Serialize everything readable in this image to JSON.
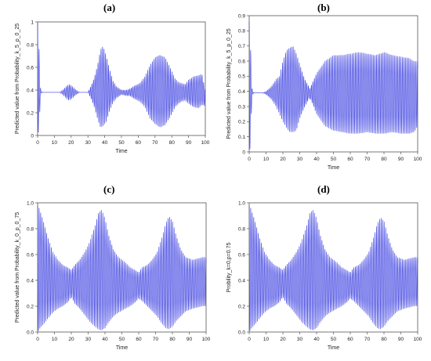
{
  "panels": {
    "a": {
      "label": "(a)"
    },
    "b": {
      "label": "(b)"
    },
    "c": {
      "label": "(c)"
    },
    "d": {
      "label": "(d)"
    }
  },
  "chart_data": [
    {
      "id": "a",
      "type": "line",
      "title": "",
      "xlabel": "Time",
      "ylabel": "Predicted value from Probability_k_5_p_0_25",
      "xlim": [
        0,
        100
      ],
      "ylim": [
        0,
        1
      ],
      "xticks": [
        0,
        10,
        20,
        30,
        40,
        50,
        60,
        70,
        80,
        90,
        100
      ],
      "yticks": [
        0,
        0.2,
        0.4,
        0.6,
        0.8,
        1
      ],
      "ytick_labels": [
        "0",
        "0.2",
        "0.4",
        "0.6",
        "0.8",
        "1"
      ],
      "grid": false,
      "color": "#3a3ee0",
      "mean": 0.38,
      "envelope": {
        "t": [
          0,
          0.5,
          1,
          1.5,
          2,
          3,
          5,
          10,
          13,
          15,
          17,
          18.5,
          20,
          21.5,
          23,
          25,
          27,
          30,
          32,
          34,
          36,
          37.5,
          39,
          41,
          43,
          45,
          47,
          50,
          53,
          55,
          58,
          61,
          64,
          67,
          70,
          73,
          76,
          79,
          82,
          84,
          86,
          88,
          90,
          93,
          96,
          98,
          100
        ],
        "upper": [
          0.99,
          0.97,
          0.7,
          0.45,
          0.39,
          0.38,
          0.38,
          0.38,
          0.38,
          0.4,
          0.43,
          0.45,
          0.44,
          0.42,
          0.4,
          0.38,
          0.38,
          0.38,
          0.44,
          0.52,
          0.64,
          0.76,
          0.79,
          0.7,
          0.58,
          0.48,
          0.43,
          0.4,
          0.4,
          0.41,
          0.44,
          0.46,
          0.52,
          0.62,
          0.69,
          0.71,
          0.69,
          0.6,
          0.5,
          0.47,
          0.46,
          0.45,
          0.49,
          0.52,
          0.53,
          0.54,
          0.4
        ],
        "lower": [
          0.0,
          0.03,
          0.04,
          0.3,
          0.37,
          0.38,
          0.38,
          0.38,
          0.38,
          0.36,
          0.33,
          0.31,
          0.32,
          0.34,
          0.36,
          0.38,
          0.38,
          0.38,
          0.32,
          0.24,
          0.13,
          0.07,
          0.08,
          0.12,
          0.22,
          0.29,
          0.33,
          0.36,
          0.35,
          0.35,
          0.32,
          0.3,
          0.25,
          0.15,
          0.1,
          0.07,
          0.09,
          0.16,
          0.25,
          0.28,
          0.3,
          0.31,
          0.28,
          0.25,
          0.24,
          0.27,
          0.26
        ]
      }
    },
    {
      "id": "b",
      "type": "line",
      "title": "",
      "xlabel": "Time",
      "ylabel": "Predicted value from Probability_k_5_p_0_25",
      "xlim": [
        0,
        100
      ],
      "ylim": [
        0,
        0.9
      ],
      "xticks": [
        0,
        10,
        20,
        30,
        40,
        50,
        60,
        70,
        80,
        90,
        100
      ],
      "yticks": [
        0,
        0.1,
        0.2,
        0.3,
        0.4,
        0.5,
        0.6,
        0.7,
        0.8,
        0.9
      ],
      "ytick_labels": [
        "0",
        "0.1",
        "0.2",
        "0.3",
        "0.4",
        "0.5",
        "0.6",
        "0.7",
        "0.8",
        "0.9"
      ],
      "grid": false,
      "color": "#3a3ee0",
      "mean": 0.39,
      "envelope": {
        "t": [
          0,
          0.5,
          1,
          1.5,
          2,
          3,
          5,
          8,
          10,
          13,
          16,
          18,
          20,
          22,
          24,
          26,
          28,
          30,
          33,
          36,
          40,
          45,
          50,
          55,
          60,
          65,
          70,
          75,
          80,
          85,
          90,
          95,
          98,
          100
        ],
        "upper": [
          0.86,
          0.85,
          0.62,
          0.44,
          0.4,
          0.39,
          0.39,
          0.39,
          0.4,
          0.43,
          0.48,
          0.5,
          0.6,
          0.67,
          0.69,
          0.7,
          0.65,
          0.58,
          0.48,
          0.42,
          0.52,
          0.6,
          0.64,
          0.64,
          0.65,
          0.66,
          0.65,
          0.64,
          0.66,
          0.64,
          0.63,
          0.62,
          0.6,
          0.6
        ],
        "lower": [
          0.0,
          0.02,
          0.1,
          0.34,
          0.38,
          0.39,
          0.39,
          0.39,
          0.38,
          0.35,
          0.3,
          0.25,
          0.2,
          0.16,
          0.13,
          0.13,
          0.14,
          0.22,
          0.3,
          0.36,
          0.25,
          0.17,
          0.14,
          0.13,
          0.12,
          0.12,
          0.13,
          0.12,
          0.12,
          0.13,
          0.12,
          0.12,
          0.13,
          0.17
        ]
      }
    },
    {
      "id": "c",
      "type": "line",
      "title": "",
      "xlabel": "Time",
      "ylabel": "Predicted value from Probability_k_0_p_0_75",
      "xlim": [
        0,
        100
      ],
      "ylim": [
        0,
        1
      ],
      "xticks": [
        0,
        10,
        20,
        30,
        40,
        50,
        60,
        70,
        80,
        90,
        100
      ],
      "yticks": [
        0,
        0.2,
        0.4,
        0.6,
        0.8,
        1
      ],
      "ytick_labels": [
        "0.0",
        "0.2",
        "0.4",
        "0.6",
        "0.8",
        "1.0"
      ],
      "grid": false,
      "color": "#3a3ee0",
      "mean": 0.37,
      "envelope": {
        "t": [
          0,
          1,
          3,
          6,
          9,
          12,
          15,
          18,
          20,
          22,
          25,
          28,
          31,
          34,
          36,
          38,
          40,
          42,
          45,
          48,
          52,
          55,
          58,
          60,
          62,
          65,
          68,
          71,
          74,
          76,
          78,
          80,
          82,
          85,
          88,
          92,
          95,
          98,
          100
        ],
        "upper": [
          0.98,
          0.96,
          0.88,
          0.74,
          0.62,
          0.56,
          0.52,
          0.5,
          0.48,
          0.52,
          0.56,
          0.62,
          0.7,
          0.82,
          0.92,
          0.95,
          0.88,
          0.76,
          0.64,
          0.58,
          0.54,
          0.5,
          0.48,
          0.46,
          0.5,
          0.52,
          0.56,
          0.62,
          0.74,
          0.84,
          0.9,
          0.86,
          0.76,
          0.64,
          0.58,
          0.56,
          0.57,
          0.58,
          0.58
        ],
        "lower": [
          0.0,
          0.02,
          0.05,
          0.1,
          0.15,
          0.18,
          0.2,
          0.23,
          0.27,
          0.22,
          0.18,
          0.13,
          0.08,
          0.04,
          0.02,
          0.01,
          0.03,
          0.07,
          0.12,
          0.15,
          0.18,
          0.2,
          0.23,
          0.26,
          0.24,
          0.2,
          0.16,
          0.12,
          0.06,
          0.03,
          0.02,
          0.04,
          0.08,
          0.12,
          0.16,
          0.18,
          0.19,
          0.2,
          0.2
        ]
      }
    },
    {
      "id": "d",
      "type": "line",
      "title": "",
      "xlabel": "Time",
      "ylabel": "Probility_k=0,p=0.75",
      "xlim": [
        0,
        100
      ],
      "ylim": [
        0,
        1
      ],
      "xticks": [
        0,
        10,
        20,
        30,
        40,
        50,
        60,
        70,
        80,
        90,
        100
      ],
      "yticks": [
        0,
        0.2,
        0.4,
        0.6,
        0.8,
        1
      ],
      "ytick_labels": [
        "0.0",
        "0.2",
        "0.4",
        "0.6",
        "0.8",
        "1.0"
      ],
      "grid": false,
      "color": "#3a3ee0",
      "mean": 0.37,
      "envelope": {
        "t": [
          0,
          1,
          3,
          6,
          9,
          12,
          15,
          18,
          20,
          22,
          25,
          28,
          31,
          34,
          36,
          38,
          40,
          42,
          45,
          48,
          52,
          55,
          58,
          60,
          62,
          65,
          68,
          71,
          74,
          76,
          78,
          80,
          82,
          85,
          88,
          92,
          95,
          98,
          100
        ],
        "upper": [
          0.98,
          0.96,
          0.88,
          0.74,
          0.62,
          0.56,
          0.52,
          0.5,
          0.48,
          0.52,
          0.56,
          0.62,
          0.7,
          0.82,
          0.92,
          0.95,
          0.88,
          0.76,
          0.64,
          0.58,
          0.54,
          0.5,
          0.48,
          0.46,
          0.5,
          0.52,
          0.56,
          0.62,
          0.74,
          0.84,
          0.89,
          0.86,
          0.76,
          0.64,
          0.58,
          0.56,
          0.57,
          0.58,
          0.58
        ],
        "lower": [
          0.0,
          0.02,
          0.05,
          0.1,
          0.15,
          0.18,
          0.2,
          0.23,
          0.27,
          0.22,
          0.18,
          0.13,
          0.08,
          0.04,
          0.02,
          0.01,
          0.03,
          0.07,
          0.12,
          0.15,
          0.18,
          0.2,
          0.23,
          0.26,
          0.24,
          0.2,
          0.16,
          0.12,
          0.06,
          0.03,
          0.02,
          0.04,
          0.08,
          0.12,
          0.16,
          0.18,
          0.19,
          0.2,
          0.2
        ]
      }
    }
  ]
}
